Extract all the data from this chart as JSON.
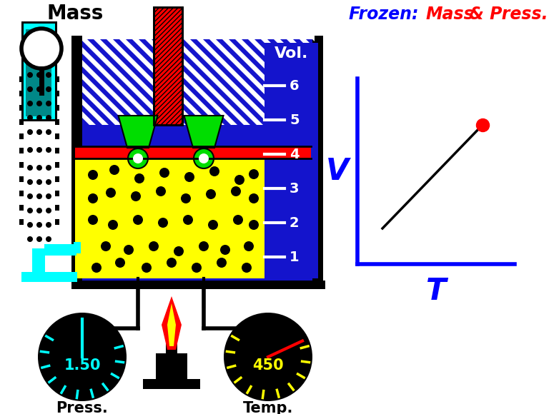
{
  "bg_color": "#ffffff",
  "blue_dark": "#1414cc",
  "blue_bright": "#0000ff",
  "cyan": "#00ffff",
  "yellow": "#ffff00",
  "red": "#ff0000",
  "green": "#00dd00",
  "black": "#000000",
  "mass_label": "Mass",
  "vol_label": "Vol.",
  "vol_ticks": [
    "1",
    "2",
    "3",
    "4",
    "5",
    "6"
  ],
  "press_value": "1.50",
  "temp_value": "450",
  "press_label": "Press.",
  "temp_label": "Temp.",
  "graph_V_label": "V",
  "graph_T_label": "T",
  "frozen_text1": "Frozen: ",
  "frozen_text2": "Mass",
  "frozen_text3": " & Press."
}
